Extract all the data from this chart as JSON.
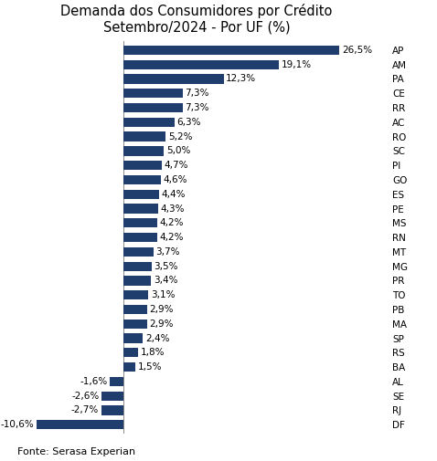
{
  "title": "Demanda dos Consumidores por Crédito\nSetembro/2024 - Por UF (%)",
  "source": "Fonte: Serasa Experian",
  "bar_color": "#1F3E6E",
  "background_color": "#FFFFFF",
  "categories": [
    "AP",
    "AM",
    "PA",
    "CE",
    "RR",
    "AC",
    "RO",
    "SC",
    "PI",
    "GO",
    "ES",
    "PE",
    "MS",
    "RN",
    "MT",
    "MG",
    "PR",
    "TO",
    "PB",
    "MA",
    "SP",
    "RS",
    "BA",
    "AL",
    "SE",
    "RJ",
    "DF"
  ],
  "values": [
    26.5,
    19.1,
    12.3,
    7.3,
    7.3,
    6.3,
    5.2,
    5.0,
    4.7,
    4.6,
    4.4,
    4.3,
    4.2,
    4.2,
    3.7,
    3.5,
    3.4,
    3.1,
    2.9,
    2.9,
    2.4,
    1.8,
    1.5,
    -1.6,
    -2.6,
    -2.7,
    -10.6
  ],
  "title_fontsize": 10.5,
  "label_fontsize": 7.5,
  "value_fontsize": 7.5,
  "source_fontsize": 8,
  "bar_height": 0.65,
  "xlim_left": -14,
  "xlim_right": 32
}
